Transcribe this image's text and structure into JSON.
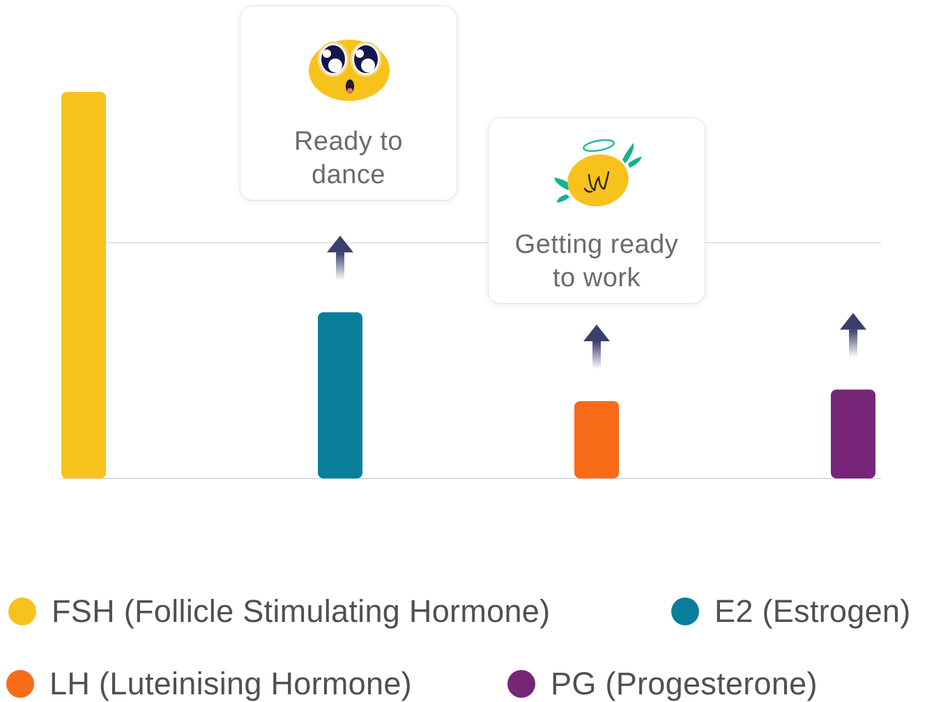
{
  "chart_data": {
    "type": "bar",
    "categories": [
      "FSH",
      "E2",
      "LH",
      "PG"
    ],
    "values": [
      100,
      43,
      20,
      23
    ],
    "ylim": [
      0,
      100
    ],
    "gridline_values": [
      0,
      61
    ],
    "rising": [
      false,
      true,
      true,
      true
    ],
    "colors": [
      "#f7c21c",
      "#097e9b",
      "#f86b18",
      "#772578"
    ],
    "legend_position": "bottom",
    "legend": [
      {
        "label": "FSH (Follicle Stimulating Hormone)",
        "color": "#f7c21c"
      },
      {
        "label": "E2 (Estrogen)",
        "color": "#097e9b"
      },
      {
        "label": "LH (Luteinising Hormone)",
        "color": "#f86b18"
      },
      {
        "label": "PG (Progesterone)",
        "color": "#772578"
      }
    ],
    "annotations": [
      {
        "category": "E2",
        "text_line1": "Ready to",
        "text_line2": "dance",
        "icon": "excited-face-icon"
      },
      {
        "category": "LH",
        "text_line1": "Getting ready",
        "text_line2": "to work",
        "icon": "halo-face-icon"
      }
    ]
  },
  "colors": {
    "gridline": "#dcdde0",
    "arrow": "#3a3f6e",
    "callout_text": "#6b6b6b",
    "legend_text": "#505050"
  }
}
